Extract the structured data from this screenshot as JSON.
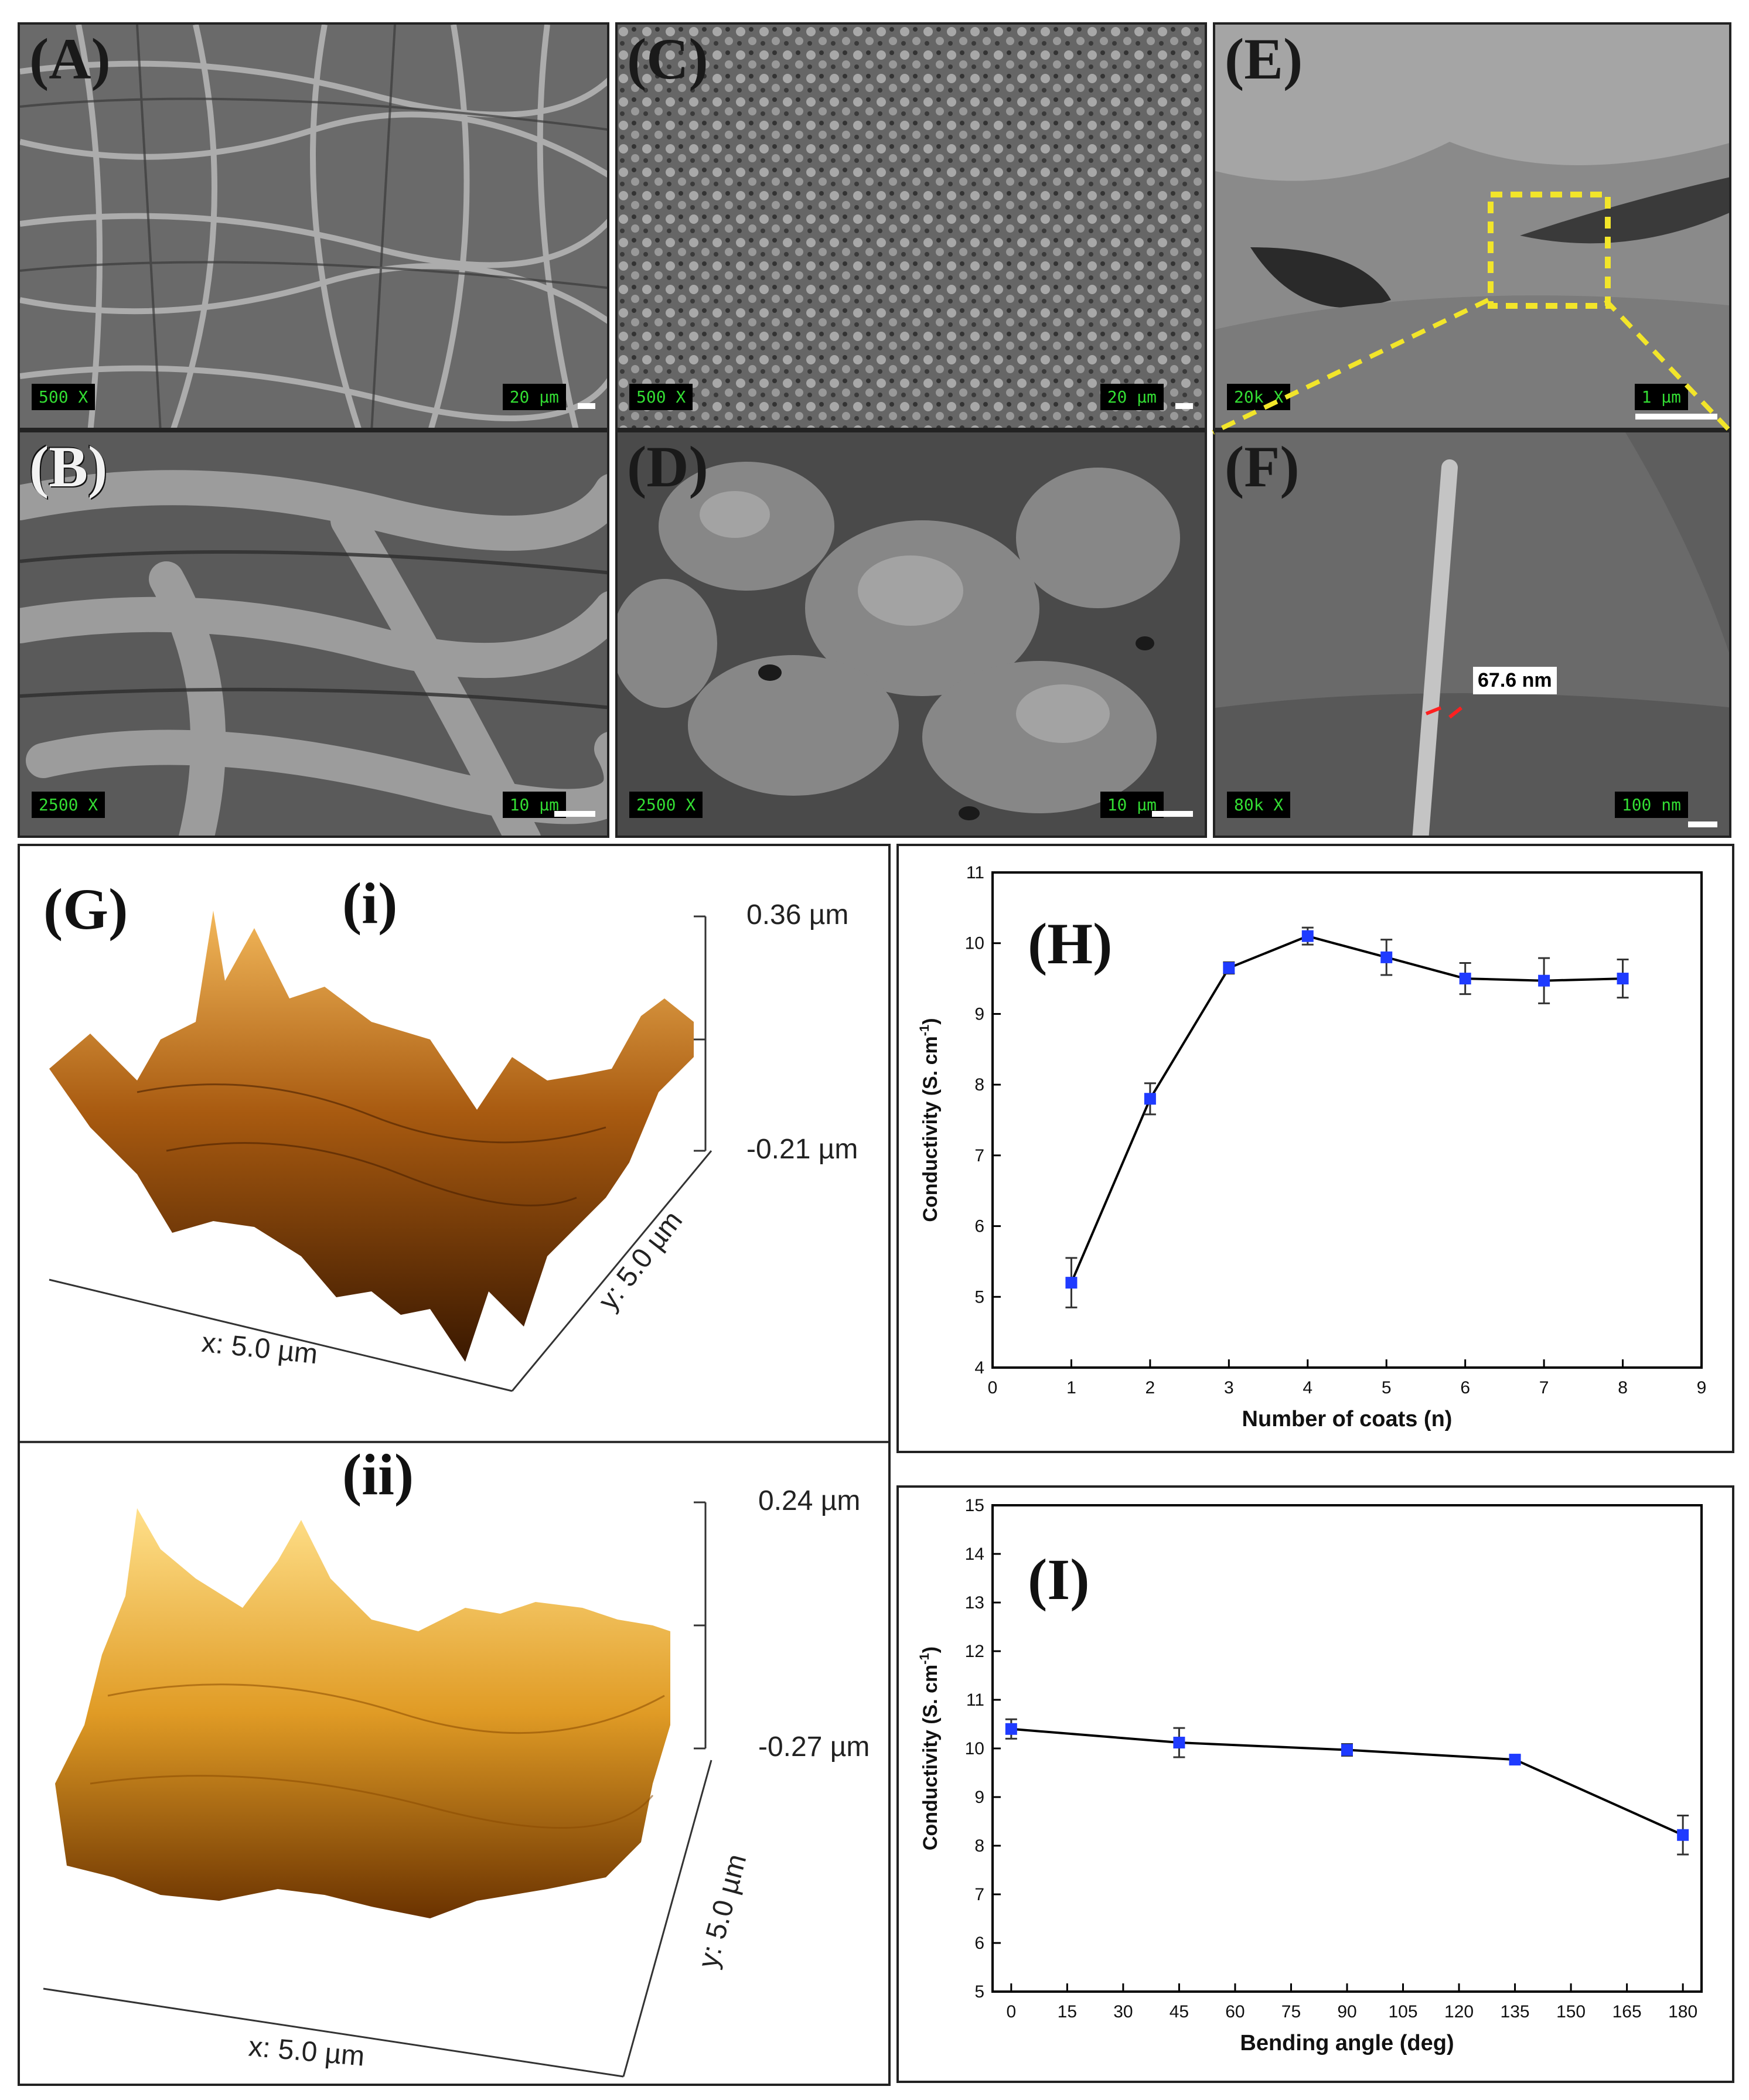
{
  "sem_panels": [
    {
      "id": "A",
      "label": "(A)",
      "mag": "500 X",
      "scale": "20 µm"
    },
    {
      "id": "B",
      "label": "(B)",
      "mag": "2500 X",
      "scale": "10 µm"
    },
    {
      "id": "C",
      "label": "(C)",
      "mag": "500 X",
      "scale": "20 µm"
    },
    {
      "id": "D",
      "label": "(D)",
      "mag": "2500 X",
      "scale": "10 µm"
    },
    {
      "id": "E",
      "label": "(E)",
      "mag": "20k X",
      "scale": "1 µm"
    },
    {
      "id": "F",
      "label": "(F)",
      "mag": "80k X",
      "scale": "100 nm",
      "annotation": "67.6 nm"
    }
  ],
  "afm": {
    "label": "(G)",
    "i": {
      "label": "(i)",
      "zmax": "0.36 µm",
      "zmin": "-0.21 µm",
      "x": "x: 5.0 µm",
      "y": "y: 5.0 µm"
    },
    "ii": {
      "label": "(ii)",
      "zmax": "0.24 µm",
      "zmin": "-0.27 µm",
      "x": "x: 5.0 µm",
      "y": "y: 5.0 µm"
    }
  },
  "colors": {
    "marker": "#1f3bff",
    "line": "#000000",
    "afm_dark": "#3a1800",
    "afm_light": "#ffc24a"
  },
  "chart_data": [
    {
      "panel": "(H)",
      "type": "line",
      "xlabel": "Number of coats (n)",
      "ylabel": "Conductivity (S. cm",
      "ylabel_sup": "-1",
      "ylabel_end": ")",
      "xlim": [
        0,
        9
      ],
      "ylim": [
        4,
        11
      ],
      "xticks": [
        0,
        1,
        2,
        3,
        4,
        5,
        6,
        7,
        8,
        9
      ],
      "yticks": [
        4,
        5,
        6,
        7,
        8,
        9,
        10,
        11
      ],
      "x": [
        1,
        2,
        3,
        4,
        5,
        6,
        7,
        8
      ],
      "y": [
        5.2,
        7.8,
        9.65,
        10.1,
        9.8,
        9.5,
        9.47,
        9.5
      ],
      "err": [
        0.35,
        0.22,
        0.08,
        0.12,
        0.25,
        0.22,
        0.32,
        0.27
      ]
    },
    {
      "panel": "(I)",
      "type": "line",
      "xlabel": "Bending angle (deg)",
      "ylabel": "Conductivity (S. cm",
      "ylabel_sup": "-1",
      "ylabel_end": ")",
      "xlim": [
        -5,
        185
      ],
      "ylim": [
        5,
        15
      ],
      "xticks": [
        0,
        15,
        30,
        45,
        60,
        75,
        90,
        105,
        120,
        135,
        150,
        165,
        180
      ],
      "yticks": [
        5,
        6,
        7,
        8,
        9,
        10,
        11,
        12,
        13,
        14,
        15
      ],
      "x": [
        0,
        45,
        90,
        135,
        180
      ],
      "y": [
        10.4,
        10.12,
        9.97,
        9.77,
        8.22
      ],
      "err": [
        0.2,
        0.3,
        0.12,
        0.08,
        0.4
      ]
    }
  ]
}
